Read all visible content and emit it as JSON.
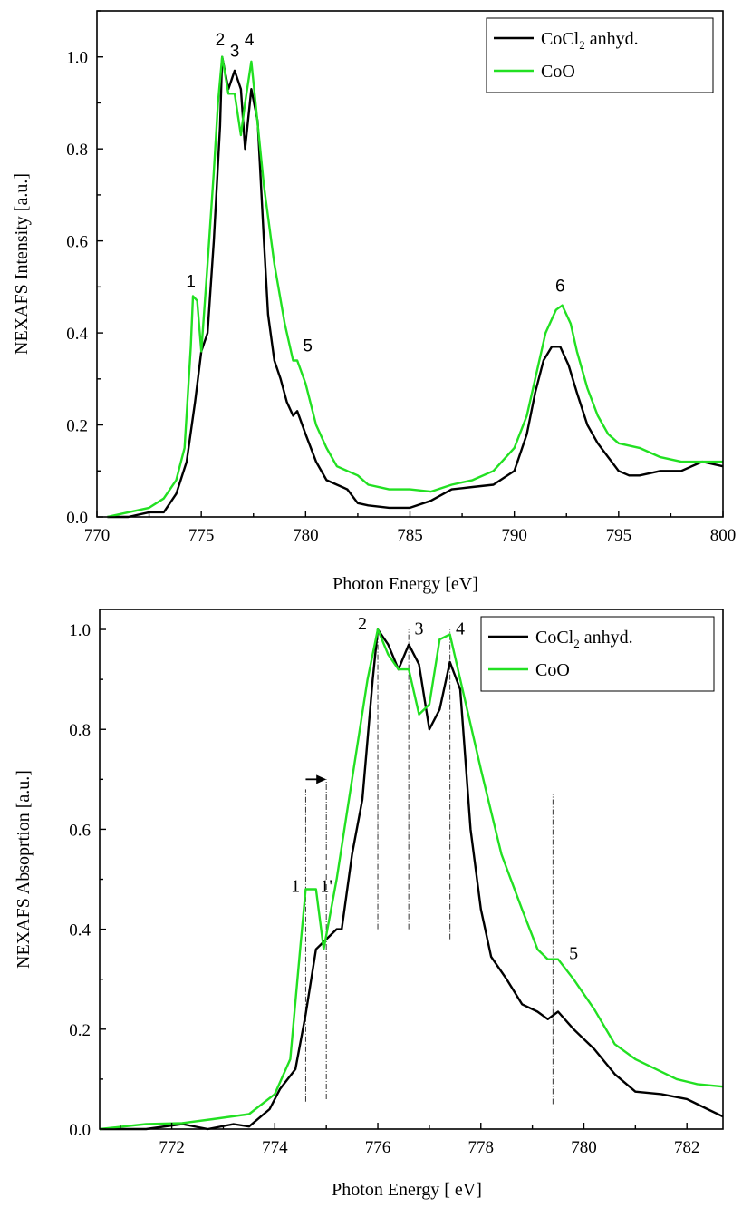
{
  "colors": {
    "cocl2": "#000000",
    "coo": "#22e022"
  },
  "chart_data": [
    {
      "type": "line",
      "xlabel": "Photon Energy [eV]",
      "ylabel": "NEXAFS Intensity [a.u.]",
      "xlim": [
        770,
        800
      ],
      "ylim": [
        0,
        1.1
      ],
      "xticks": [
        770,
        775,
        780,
        785,
        790,
        795,
        800
      ],
      "yticks": [
        0.0,
        0.2,
        0.4,
        0.6,
        0.8,
        1.0
      ],
      "legend_placement": "top-right",
      "legend": {
        "cocl2": {
          "main": "CoCl",
          "sub": "2",
          "rest": " anhyd."
        },
        "coo": "CoO"
      },
      "series": [
        {
          "key": "cocl2",
          "name": "CoCl2 anhyd.",
          "points": [
            [
              770.5,
              0.0
            ],
            [
              771.5,
              0.0
            ],
            [
              772.5,
              0.01
            ],
            [
              773.2,
              0.01
            ],
            [
              773.8,
              0.05
            ],
            [
              774.3,
              0.12
            ],
            [
              774.7,
              0.25
            ],
            [
              775.0,
              0.36
            ],
            [
              775.3,
              0.4
            ],
            [
              775.6,
              0.6
            ],
            [
              775.9,
              0.85
            ],
            [
              776.0,
              1.0
            ],
            [
              776.3,
              0.93
            ],
            [
              776.6,
              0.97
            ],
            [
              776.9,
              0.93
            ],
            [
              777.1,
              0.8
            ],
            [
              777.4,
              0.93
            ],
            [
              777.7,
              0.86
            ],
            [
              778.0,
              0.6
            ],
            [
              778.2,
              0.44
            ],
            [
              778.5,
              0.34
            ],
            [
              778.8,
              0.3
            ],
            [
              779.1,
              0.25
            ],
            [
              779.4,
              0.22
            ],
            [
              779.6,
              0.23
            ],
            [
              780.0,
              0.18
            ],
            [
              780.5,
              0.12
            ],
            [
              781.0,
              0.08
            ],
            [
              781.5,
              0.07
            ],
            [
              782.0,
              0.06
            ],
            [
              782.5,
              0.03
            ],
            [
              783.0,
              0.025
            ],
            [
              784.0,
              0.02
            ],
            [
              785.0,
              0.02
            ],
            [
              786.0,
              0.035
            ],
            [
              787.0,
              0.06
            ],
            [
              788.0,
              0.065
            ],
            [
              789.0,
              0.07
            ],
            [
              790.0,
              0.1
            ],
            [
              790.6,
              0.18
            ],
            [
              791.0,
              0.27
            ],
            [
              791.4,
              0.34
            ],
            [
              791.8,
              0.37
            ],
            [
              792.2,
              0.37
            ],
            [
              792.6,
              0.33
            ],
            [
              793.0,
              0.27
            ],
            [
              793.5,
              0.2
            ],
            [
              794.0,
              0.16
            ],
            [
              794.5,
              0.13
            ],
            [
              795.0,
              0.1
            ],
            [
              795.5,
              0.09
            ],
            [
              796.0,
              0.09
            ],
            [
              797.0,
              0.1
            ],
            [
              798.0,
              0.1
            ],
            [
              799.0,
              0.12
            ],
            [
              800.0,
              0.11
            ]
          ]
        },
        {
          "key": "coo",
          "name": "CoO",
          "points": [
            [
              770.5,
              0.0
            ],
            [
              771.5,
              0.01
            ],
            [
              772.5,
              0.02
            ],
            [
              773.2,
              0.04
            ],
            [
              773.8,
              0.08
            ],
            [
              774.2,
              0.15
            ],
            [
              774.5,
              0.37
            ],
            [
              774.6,
              0.48
            ],
            [
              774.8,
              0.47
            ],
            [
              775.0,
              0.36
            ],
            [
              775.3,
              0.55
            ],
            [
              775.6,
              0.75
            ],
            [
              775.8,
              0.9
            ],
            [
              776.0,
              1.0
            ],
            [
              776.3,
              0.92
            ],
            [
              776.6,
              0.92
            ],
            [
              776.9,
              0.83
            ],
            [
              777.1,
              0.9
            ],
            [
              777.4,
              0.99
            ],
            [
              777.6,
              0.9
            ],
            [
              778.0,
              0.72
            ],
            [
              778.5,
              0.55
            ],
            [
              779.0,
              0.42
            ],
            [
              779.4,
              0.34
            ],
            [
              779.6,
              0.34
            ],
            [
              780.0,
              0.29
            ],
            [
              780.5,
              0.2
            ],
            [
              781.0,
              0.15
            ],
            [
              781.5,
              0.11
            ],
            [
              782.0,
              0.1
            ],
            [
              782.5,
              0.09
            ],
            [
              783.0,
              0.07
            ],
            [
              784.0,
              0.06
            ],
            [
              785.0,
              0.06
            ],
            [
              786.0,
              0.055
            ],
            [
              787.0,
              0.07
            ],
            [
              788.0,
              0.08
            ],
            [
              789.0,
              0.1
            ],
            [
              790.0,
              0.15
            ],
            [
              790.6,
              0.22
            ],
            [
              791.0,
              0.3
            ],
            [
              791.5,
              0.4
            ],
            [
              792.0,
              0.45
            ],
            [
              792.3,
              0.46
            ],
            [
              792.7,
              0.42
            ],
            [
              793.0,
              0.36
            ],
            [
              793.5,
              0.28
            ],
            [
              794.0,
              0.22
            ],
            [
              794.5,
              0.18
            ],
            [
              795.0,
              0.16
            ],
            [
              796.0,
              0.15
            ],
            [
              797.0,
              0.13
            ],
            [
              798.0,
              0.12
            ],
            [
              799.0,
              0.12
            ],
            [
              800.0,
              0.12
            ]
          ]
        }
      ],
      "annotations": [
        {
          "text": "1",
          "x": 774.5,
          "y": 0.5
        },
        {
          "text": "2",
          "x": 775.9,
          "y": 1.025
        },
        {
          "text": "3",
          "x": 776.6,
          "y": 1.0
        },
        {
          "text": "4",
          "x": 777.3,
          "y": 1.025
        },
        {
          "text": "5",
          "x": 780.1,
          "y": 0.36
        },
        {
          "text": "6",
          "x": 792.2,
          "y": 0.49
        }
      ]
    },
    {
      "type": "line",
      "xlabel": "Photon Energy [ eV]",
      "ylabel": "NEXAFS Absoprtion [a.u.]",
      "xlim": [
        770.6,
        782.7
      ],
      "ylim": [
        0,
        1.04
      ],
      "xticks": [
        772,
        774,
        776,
        778,
        780,
        782
      ],
      "yticks": [
        0.0,
        0.2,
        0.4,
        0.6,
        0.8,
        1.0
      ],
      "legend_placement": "top-right",
      "legend": {
        "cocl2": {
          "main": "CoCl",
          "sub": "2",
          "rest": " anhyd."
        },
        "coo": "CoO"
      },
      "series": [
        {
          "key": "cocl2",
          "name": "CoCl2 anhyd.",
          "points": [
            [
              770.6,
              0.0
            ],
            [
              771.5,
              0.0
            ],
            [
              772.2,
              0.01
            ],
            [
              772.7,
              0.0
            ],
            [
              773.2,
              0.01
            ],
            [
              773.5,
              0.005
            ],
            [
              773.9,
              0.04
            ],
            [
              774.1,
              0.08
            ],
            [
              774.4,
              0.12
            ],
            [
              774.6,
              0.23
            ],
            [
              774.8,
              0.36
            ],
            [
              775.0,
              0.38
            ],
            [
              775.2,
              0.4
            ],
            [
              775.3,
              0.4
            ],
            [
              775.5,
              0.55
            ],
            [
              775.7,
              0.66
            ],
            [
              775.9,
              0.9
            ],
            [
              776.0,
              1.0
            ],
            [
              776.2,
              0.97
            ],
            [
              776.4,
              0.92
            ],
            [
              776.6,
              0.97
            ],
            [
              776.8,
              0.93
            ],
            [
              777.0,
              0.8
            ],
            [
              777.2,
              0.84
            ],
            [
              777.4,
              0.935
            ],
            [
              777.6,
              0.88
            ],
            [
              777.8,
              0.6
            ],
            [
              778.0,
              0.44
            ],
            [
              778.2,
              0.345
            ],
            [
              778.5,
              0.3
            ],
            [
              778.8,
              0.25
            ],
            [
              779.1,
              0.235
            ],
            [
              779.3,
              0.22
            ],
            [
              779.5,
              0.235
            ],
            [
              779.8,
              0.2
            ],
            [
              780.2,
              0.16
            ],
            [
              780.6,
              0.11
            ],
            [
              781.0,
              0.075
            ],
            [
              781.5,
              0.07
            ],
            [
              782.0,
              0.06
            ],
            [
              782.4,
              0.04
            ],
            [
              782.7,
              0.025
            ]
          ]
        },
        {
          "key": "coo",
          "name": "CoO",
          "points": [
            [
              770.6,
              0.0
            ],
            [
              771.5,
              0.01
            ],
            [
              772.2,
              0.012
            ],
            [
              772.8,
              0.02
            ],
            [
              773.5,
              0.03
            ],
            [
              774.0,
              0.07
            ],
            [
              774.3,
              0.14
            ],
            [
              774.5,
              0.37
            ],
            [
              774.6,
              0.48
            ],
            [
              774.8,
              0.48
            ],
            [
              774.95,
              0.36
            ],
            [
              775.2,
              0.5
            ],
            [
              775.5,
              0.7
            ],
            [
              775.8,
              0.9
            ],
            [
              776.0,
              1.0
            ],
            [
              776.2,
              0.95
            ],
            [
              776.4,
              0.92
            ],
            [
              776.6,
              0.92
            ],
            [
              776.8,
              0.83
            ],
            [
              777.0,
              0.85
            ],
            [
              777.2,
              0.98
            ],
            [
              777.4,
              0.99
            ],
            [
              777.6,
              0.9
            ],
            [
              778.0,
              0.72
            ],
            [
              778.4,
              0.55
            ],
            [
              778.8,
              0.44
            ],
            [
              779.1,
              0.36
            ],
            [
              779.3,
              0.34
            ],
            [
              779.5,
              0.34
            ],
            [
              779.8,
              0.3
            ],
            [
              780.2,
              0.24
            ],
            [
              780.6,
              0.17
            ],
            [
              781.0,
              0.14
            ],
            [
              781.4,
              0.12
            ],
            [
              781.8,
              0.1
            ],
            [
              782.2,
              0.09
            ],
            [
              782.7,
              0.085
            ]
          ]
        }
      ],
      "annotations": [
        {
          "text": "1",
          "x": 774.4,
          "y": 0.475
        },
        {
          "text": "1'",
          "x": 775.0,
          "y": 0.475
        },
        {
          "text": "2",
          "x": 775.7,
          "y": 1.0
        },
        {
          "text": "3",
          "x": 776.8,
          "y": 0.99
        },
        {
          "text": "4",
          "x": 777.6,
          "y": 0.99
        },
        {
          "text": "5",
          "x": 779.8,
          "y": 0.34
        }
      ],
      "guide_lines": [
        {
          "x": 774.6,
          "y0": 0.055,
          "y1": 0.68
        },
        {
          "x": 775.0,
          "y0": 0.06,
          "y1": 0.7
        },
        {
          "x": 776.0,
          "y0": 0.4,
          "y1": 1.0
        },
        {
          "x": 776.6,
          "y0": 0.4,
          "y1": 1.0
        },
        {
          "x": 777.4,
          "y0": 0.38,
          "y1": 1.0
        },
        {
          "x": 779.4,
          "y0": 0.05,
          "y1": 0.67
        }
      ],
      "arrow": {
        "x0": 774.6,
        "x1": 775.0,
        "y": 0.7
      }
    }
  ]
}
